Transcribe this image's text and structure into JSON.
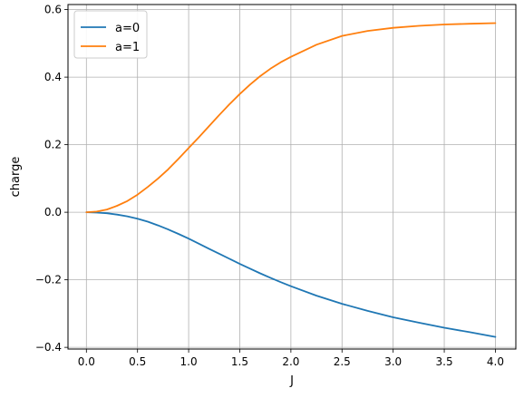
{
  "chart_data": {
    "type": "line",
    "title": "",
    "xlabel": "J",
    "ylabel": "charge",
    "xlim": [
      -0.18,
      4.2
    ],
    "ylim": [
      -0.405,
      0.615
    ],
    "xticks": [
      0.0,
      0.5,
      1.0,
      1.5,
      2.0,
      2.5,
      3.0,
      3.5,
      4.0
    ],
    "xtick_labels": [
      "0.0",
      "0.5",
      "1.0",
      "1.5",
      "2.0",
      "2.5",
      "3.0",
      "3.5",
      "4.0"
    ],
    "yticks": [
      -0.4,
      -0.2,
      0.0,
      0.2,
      0.4,
      0.6
    ],
    "ytick_labels": [
      "−0.4",
      "−0.2",
      "0.0",
      "0.2",
      "0.4",
      "0.6"
    ],
    "grid": true,
    "legend_position": "upper left",
    "x": [
      0.0,
      0.1,
      0.2,
      0.3,
      0.4,
      0.5,
      0.6,
      0.7,
      0.8,
      0.9,
      1.0,
      1.1,
      1.2,
      1.3,
      1.4,
      1.5,
      1.6,
      1.7,
      1.8,
      1.9,
      2.0,
      2.25,
      2.5,
      2.75,
      3.0,
      3.25,
      3.5,
      3.75,
      4.0
    ],
    "series": [
      {
        "name": "a=0",
        "color": "#1f77b4",
        "values": [
          0.0,
          -0.001,
          -0.003,
          -0.007,
          -0.012,
          -0.019,
          -0.028,
          -0.039,
          -0.051,
          -0.064,
          -0.078,
          -0.093,
          -0.108,
          -0.123,
          -0.138,
          -0.153,
          -0.167,
          -0.181,
          -0.194,
          -0.207,
          -0.219,
          -0.247,
          -0.271,
          -0.292,
          -0.311,
          -0.327,
          -0.342,
          -0.355,
          -0.369
        ]
      },
      {
        "name": "a=1",
        "color": "#ff7f0e",
        "values": [
          0.0,
          0.002,
          0.008,
          0.019,
          0.033,
          0.052,
          0.075,
          0.1,
          0.127,
          0.158,
          0.19,
          0.222,
          0.255,
          0.288,
          0.32,
          0.35,
          0.378,
          0.403,
          0.425,
          0.444,
          0.46,
          0.496,
          0.522,
          0.537,
          0.546,
          0.552,
          0.556,
          0.558,
          0.56
        ]
      }
    ]
  }
}
